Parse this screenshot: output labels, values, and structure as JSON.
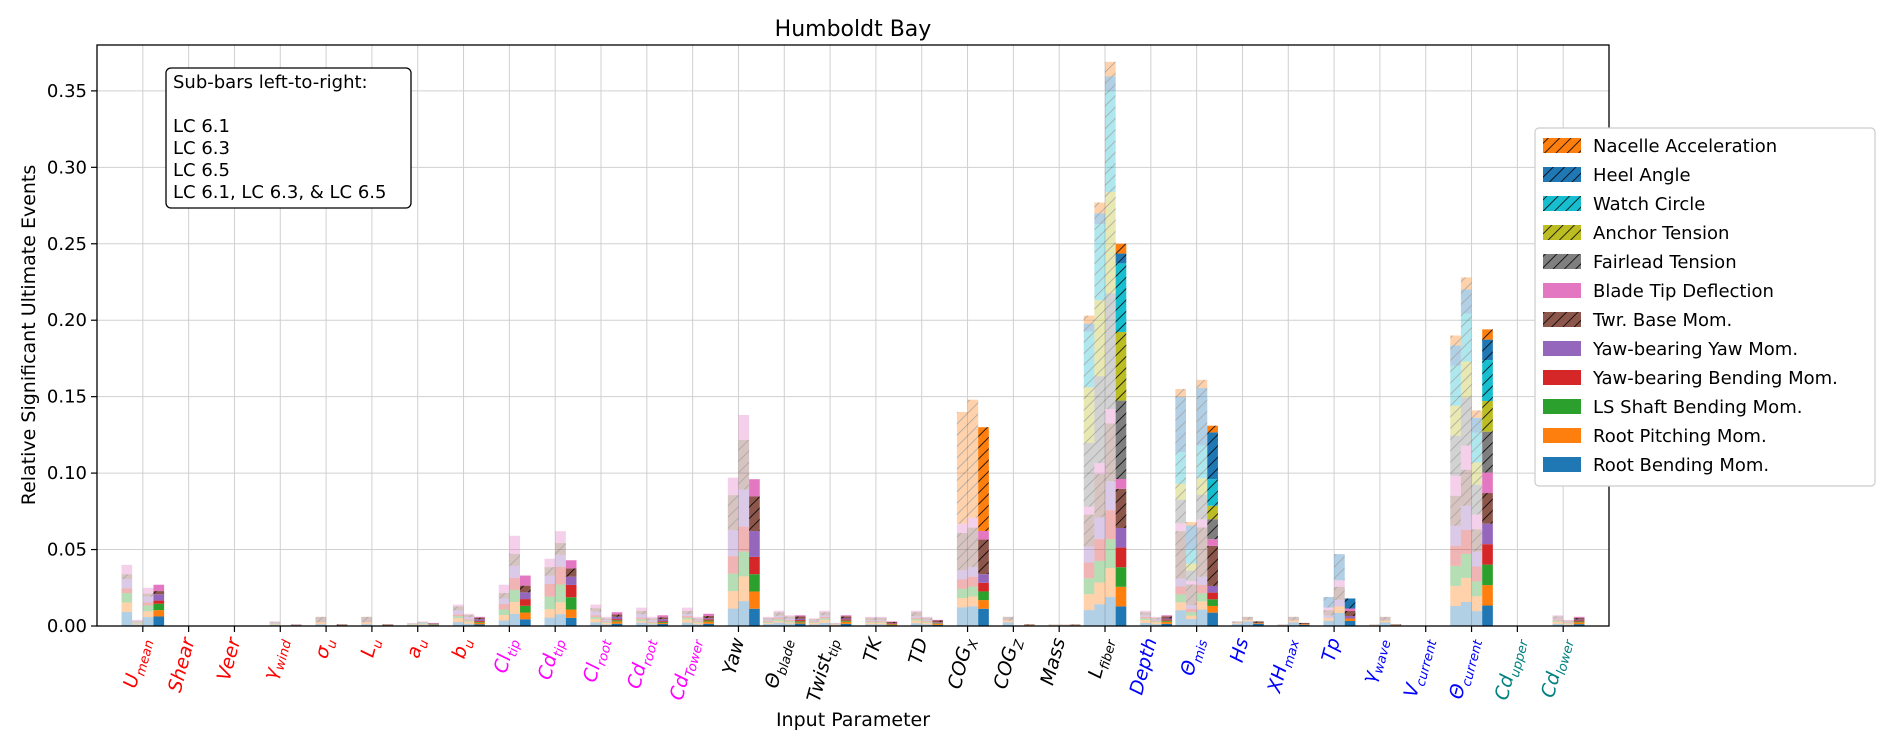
{
  "chart_data": {
    "type": "bar",
    "title": "Humboldt Bay",
    "xlabel": "Input Parameter",
    "ylabel": "Relative Significant Ultimate Events",
    "ylim": [
      0,
      0.38
    ],
    "yticks": [
      "0.00",
      "0.05",
      "0.10",
      "0.15",
      "0.20",
      "0.25",
      "0.30",
      "0.35"
    ],
    "grid": true,
    "legend_position": "right",
    "annotation": {
      "heading": "Sub-bars left-to-right:",
      "lines": [
        "LC 6.1",
        "LC 6.3",
        "LC 6.5",
        "LC 6.1, LC 6.3, & LC 6.5"
      ]
    },
    "sub_bars": [
      "LC 6.1",
      "LC 6.3",
      "LC 6.5",
      "LC 6.1, LC 6.3, & LC 6.5"
    ],
    "categories": [
      {
        "base": "U",
        "sub": "mean",
        "color": "#ff0000"
      },
      {
        "base": "Shear",
        "sub": "",
        "color": "#ff0000"
      },
      {
        "base": "Veer",
        "sub": "",
        "color": "#ff0000"
      },
      {
        "base": "γ",
        "sub": "wind",
        "color": "#ff0000"
      },
      {
        "base": "σ",
        "sub": "u",
        "color": "#ff0000"
      },
      {
        "base": "L",
        "sub": "u",
        "color": "#ff0000"
      },
      {
        "base": "a",
        "sub": "u",
        "color": "#ff0000"
      },
      {
        "base": "b",
        "sub": "u",
        "color": "#ff0000"
      },
      {
        "base": "Cl",
        "sub": "tip",
        "color": "#ff00ff"
      },
      {
        "base": "Cd",
        "sub": "tip",
        "color": "#ff00ff"
      },
      {
        "base": "Cl",
        "sub": "root",
        "color": "#ff00ff"
      },
      {
        "base": "Cd",
        "sub": "root",
        "color": "#ff00ff"
      },
      {
        "base": "Cd",
        "sub": "Tower",
        "color": "#ff00ff"
      },
      {
        "base": "Yaw",
        "sub": "",
        "color": "#000000"
      },
      {
        "base": "Θ",
        "sub": "blade",
        "color": "#000000"
      },
      {
        "base": "Twist",
        "sub": "tip",
        "color": "#000000"
      },
      {
        "base": "TK",
        "sub": "",
        "color": "#000000"
      },
      {
        "base": "TD",
        "sub": "",
        "color": "#000000"
      },
      {
        "base": "COG",
        "sub": "X",
        "color": "#000000"
      },
      {
        "base": "COG",
        "sub": "Z",
        "color": "#000000"
      },
      {
        "base": "Mass",
        "sub": "",
        "color": "#000000"
      },
      {
        "base": "L",
        "sub": "fiber",
        "color": "#000000"
      },
      {
        "base": "Depth",
        "sub": "",
        "color": "#0000ff"
      },
      {
        "base": "Θ",
        "sub": "mis",
        "color": "#0000ff"
      },
      {
        "base": "Hs",
        "sub": "",
        "color": "#0000ff"
      },
      {
        "base": "XH",
        "sub": "max",
        "color": "#0000ff"
      },
      {
        "base": "Tp",
        "sub": "",
        "color": "#0000ff"
      },
      {
        "base": "γ",
        "sub": "wave",
        "color": "#0000ff"
      },
      {
        "base": "V",
        "sub": "current",
        "color": "#0000ff"
      },
      {
        "base": "Θ",
        "sub": "current",
        "color": "#0000ff"
      },
      {
        "base": "Cd",
        "sub": "upper",
        "color": "#008080"
      },
      {
        "base": "Cd",
        "sub": "lower",
        "color": "#008080"
      }
    ],
    "series": [
      {
        "name": "Root Bending Mom.",
        "color": "#1f77b4",
        "hatch": false
      },
      {
        "name": "Root Pitching Mom.",
        "color": "#ff7f0e",
        "hatch": false
      },
      {
        "name": "LS Shaft Bending Mom.",
        "color": "#2ca02c",
        "hatch": false
      },
      {
        "name": "Yaw-bearing Bending Mom.",
        "color": "#d62728",
        "hatch": false
      },
      {
        "name": "Yaw-bearing Yaw Mom.",
        "color": "#9467bd",
        "hatch": false
      },
      {
        "name": "Twr. Base Mom.",
        "color": "#8c564b",
        "hatch": true
      },
      {
        "name": "Blade Tip Deflection",
        "color": "#e377c2",
        "hatch": false
      },
      {
        "name": "Fairlead Tension",
        "color": "#7f7f7f",
        "hatch": true
      },
      {
        "name": "Anchor Tension",
        "color": "#bcbd22",
        "hatch": true
      },
      {
        "name": "Watch Circle",
        "color": "#17becf",
        "hatch": true
      },
      {
        "name": "Heel Angle",
        "color": "#1f77b4",
        "hatch": true
      },
      {
        "name": "Nacelle Acceleration",
        "color": "#ff7f0e",
        "hatch": true
      }
    ],
    "totals_by_category": [
      [
        0.04,
        0.004,
        0.025,
        0.027
      ],
      [
        0,
        0,
        0,
        0
      ],
      [
        0,
        0,
        0,
        0
      ],
      [
        0,
        0.003,
        0,
        0.001
      ],
      [
        0,
        0.006,
        0,
        0.001
      ],
      [
        0,
        0.006,
        0,
        0.001
      ],
      [
        0,
        0.002,
        0.003,
        0.002
      ],
      [
        0,
        0.014,
        0.008,
        0.006
      ],
      [
        0.0,
        0.027,
        0.059,
        0.033
      ],
      [
        0.0,
        0.044,
        0.062,
        0.043
      ],
      [
        0.0,
        0.014,
        0.006,
        0.009
      ],
      [
        0.0,
        0.012,
        0.006,
        0.007
      ],
      [
        0.0,
        0.012,
        0.006,
        0.008
      ],
      [
        0.0,
        0.097,
        0.138,
        0.096
      ],
      [
        0.006,
        0.01,
        0.007,
        0.007
      ],
      [
        0.005,
        0.01,
        0.002,
        0.007
      ],
      [
        0.0,
        0.006,
        0.006,
        0.003
      ],
      [
        0.0,
        0.01,
        0.006,
        0.004
      ],
      [
        0.0,
        0.14,
        0.148,
        0.13
      ],
      [
        0.0,
        0.006,
        0.0,
        0.001
      ],
      [
        0.0,
        0.001,
        0.001,
        0.001
      ],
      [
        0.203,
        0.277,
        0.369,
        0.25
      ],
      [
        0.0,
        0.01,
        0.006,
        0.007
      ],
      [
        0.155,
        0.068,
        0.161,
        0.131
      ],
      [
        0.0,
        0.003,
        0.006,
        0.003
      ],
      [
        0.0,
        0.001,
        0.006,
        0.002
      ],
      [
        0.0,
        0.019,
        0.047,
        0.018
      ],
      [
        0.0,
        0.001,
        0.006,
        0.001
      ],
      [
        0.0,
        0.0,
        0.0,
        0.0
      ],
      [
        0.19,
        0.228,
        0.141,
        0.194
      ],
      [
        0.0,
        0.0,
        0.0,
        0.0
      ],
      [
        0.0,
        0.007,
        0.004,
        0.006
      ]
    ],
    "shares_by_category": [
      [
        3,
        2,
        2,
        1,
        2,
        1,
        2,
        0,
        0,
        0,
        0,
        0
      ],
      [
        1,
        1,
        1,
        1,
        1,
        1,
        1,
        1,
        1,
        1,
        1,
        1
      ],
      [
        1,
        1,
        1,
        1,
        1,
        1,
        1,
        1,
        1,
        1,
        1,
        1
      ],
      [
        3,
        2,
        2,
        1,
        2,
        3,
        1,
        0,
        0,
        0,
        0,
        0
      ],
      [
        1,
        1,
        0,
        0,
        0,
        3,
        0,
        0,
        0,
        0,
        0,
        0
      ],
      [
        1,
        1,
        0,
        0,
        0,
        3,
        0,
        0,
        0,
        0,
        0,
        0
      ],
      [
        2,
        1,
        1,
        0,
        1,
        1,
        1,
        0,
        0,
        0,
        0,
        0
      ],
      [
        2,
        2,
        1,
        1,
        2,
        2,
        1,
        0,
        0,
        0,
        0,
        0
      ],
      [
        2,
        2,
        2,
        2,
        2,
        2,
        3,
        0,
        0,
        0,
        0,
        0
      ],
      [
        2,
        2,
        3,
        3,
        2,
        2,
        2,
        0,
        0,
        0,
        0,
        0
      ],
      [
        2,
        2,
        1,
        1,
        2,
        2,
        2,
        0,
        0,
        0,
        0,
        0
      ],
      [
        2,
        1,
        1,
        1,
        2,
        2,
        2,
        0,
        0,
        0,
        0,
        0
      ],
      [
        2,
        2,
        1,
        1,
        1,
        2,
        2,
        0,
        0,
        0,
        0,
        0
      ],
      [
        2,
        2,
        2,
        2,
        3,
        4,
        2,
        0,
        0,
        0,
        0,
        0
      ],
      [
        2,
        1,
        1,
        1,
        1,
        2,
        1,
        0,
        0,
        0,
        0,
        0
      ],
      [
        2,
        2,
        1,
        1,
        1,
        2,
        1,
        0,
        0,
        0,
        0,
        0
      ],
      [
        2,
        2,
        1,
        1,
        1,
        3,
        1,
        0,
        0,
        0,
        0,
        0
      ],
      [
        2,
        2,
        1,
        1,
        1,
        3,
        1,
        0,
        0,
        0,
        0,
        0
      ],
      [
        2,
        1,
        1,
        1,
        1,
        4,
        1,
        0,
        0,
        0,
        0,
        12
      ],
      [
        2,
        1,
        0,
        0,
        0,
        2,
        0,
        0,
        0,
        0,
        0,
        0
      ],
      [
        2,
        1,
        0,
        0,
        0,
        1,
        0,
        0,
        0,
        0,
        0,
        0
      ],
      [
        2,
        2,
        2,
        2,
        2,
        4,
        1,
        8,
        7,
        7,
        1,
        1
      ],
      [
        2,
        2,
        1,
        1,
        1,
        2,
        1,
        0,
        0,
        0,
        0,
        0
      ],
      [
        2,
        1,
        1,
        1,
        1,
        6,
        1,
        3,
        2,
        4,
        7,
        1
      ],
      [
        3,
        1,
        0,
        0,
        0,
        2,
        0,
        0,
        0,
        0,
        0,
        0
      ],
      [
        2,
        1,
        0,
        0,
        0,
        2,
        0,
        0,
        0,
        0,
        0,
        0
      ],
      [
        2,
        1,
        0,
        0,
        1,
        2,
        1,
        0,
        0,
        0,
        4,
        0
      ],
      [
        2,
        1,
        0,
        0,
        0,
        2,
        0,
        0,
        0,
        0,
        0,
        0
      ],
      [
        1,
        1,
        1,
        1,
        1,
        1,
        1,
        1,
        1,
        1,
        1,
        1
      ],
      [
        2,
        2,
        2,
        2,
        2,
        3,
        2,
        4,
        3,
        4,
        2,
        1
      ],
      [
        1,
        1,
        1,
        1,
        1,
        1,
        1,
        1,
        1,
        1,
        1,
        1
      ],
      [
        2,
        2,
        1,
        1,
        1,
        2,
        1,
        0,
        0,
        0,
        0,
        0
      ]
    ]
  }
}
